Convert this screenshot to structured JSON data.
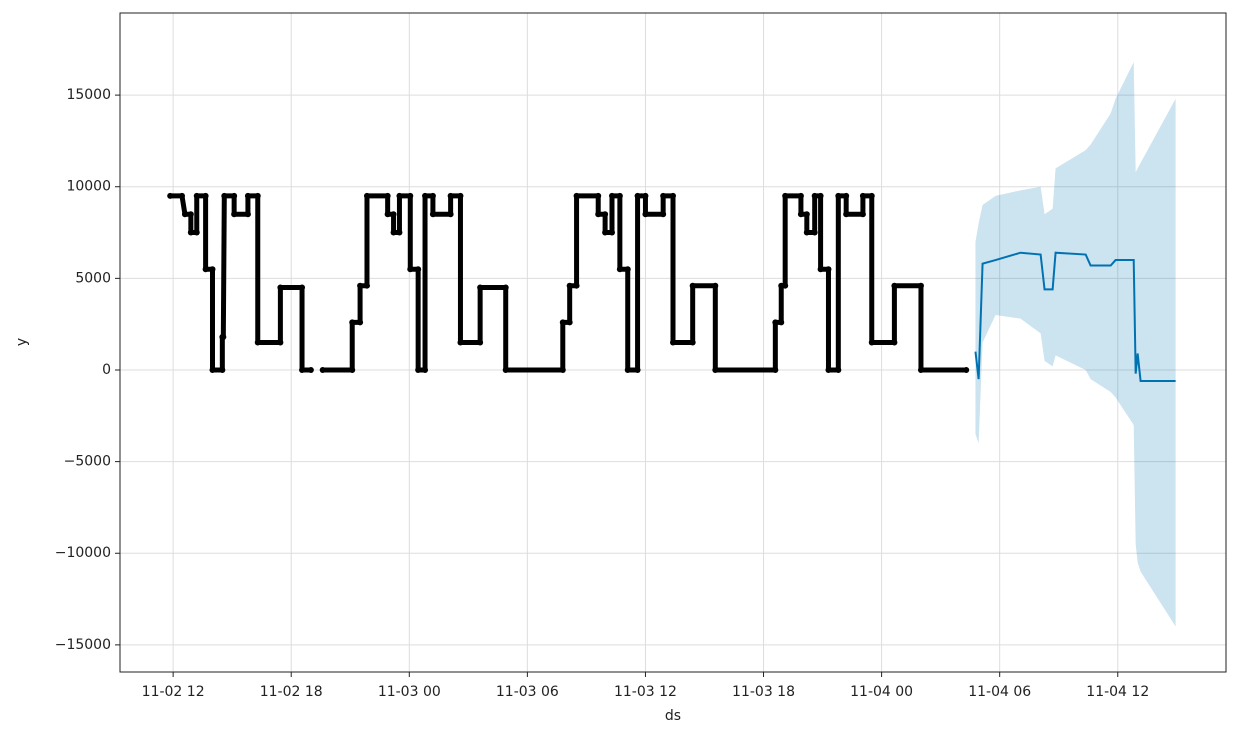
{
  "chart_data": {
    "type": "forecast",
    "xlabel": "ds",
    "ylabel": "y",
    "xlim": [
      9.3,
      65.5
    ],
    "xticks": [
      {
        "value": 12,
        "label": "11-02 12"
      },
      {
        "value": 18,
        "label": "11-02 18"
      },
      {
        "value": 24,
        "label": "11-03 00"
      },
      {
        "value": 30,
        "label": "11-03 06"
      },
      {
        "value": 36,
        "label": "11-03 12"
      },
      {
        "value": 42,
        "label": "11-03 18"
      },
      {
        "value": 48,
        "label": "11-04 00"
      },
      {
        "value": 54,
        "label": "11-04 06"
      },
      {
        "value": 60,
        "label": "11-04 12"
      }
    ],
    "ylim": [
      -16480,
      19480
    ],
    "yticks": [
      {
        "value": -15000,
        "label": "−15000"
      },
      {
        "value": -10000,
        "label": "−10000"
      },
      {
        "value": -5000,
        "label": "−5000"
      },
      0,
      5000,
      10000,
      15000
    ],
    "grid": true,
    "observed": {
      "color": "#000000",
      "x": [
        11.85,
        12.45,
        12.6,
        12.9,
        12.9,
        13.2,
        13.2,
        13.65,
        13.65,
        14.0,
        14.0,
        14.5,
        14.5,
        14.55,
        14.6,
        15.1,
        15.1,
        15.8,
        15.8,
        16.3,
        16.3,
        17.45,
        17.45,
        18.55,
        18.55,
        19.0,
        19.3,
        19.6,
        21.1,
        21.1,
        21.5,
        21.5,
        21.85,
        21.85,
        22.9,
        22.9,
        23.2,
        23.2,
        23.5,
        23.5,
        24.05,
        24.05,
        24.45,
        24.45,
        24.8,
        24.8,
        25.2,
        25.2,
        26.1,
        26.1,
        26.6,
        26.6,
        27.6,
        27.6,
        28.9,
        28.9,
        31.8,
        31.8,
        32.15,
        32.15,
        32.5,
        32.5,
        33.6,
        33.6,
        33.95,
        33.95,
        34.3,
        34.3,
        34.7,
        34.7,
        35.1,
        35.1,
        35.6,
        35.6,
        36.0,
        36.0,
        36.9,
        36.9,
        37.4,
        37.4,
        38.4,
        38.4,
        39.55,
        39.55,
        42.6,
        42.6,
        42.9,
        42.9,
        43.1,
        43.1,
        43.9,
        43.9,
        44.2,
        44.2,
        44.6,
        44.6,
        44.9,
        44.9,
        45.3,
        45.3,
        45.8,
        45.8,
        46.2,
        46.2,
        47.05,
        47.05,
        47.5,
        47.5,
        48.65,
        48.65,
        50.0,
        50.0,
        52.3
      ],
      "y": [
        9500,
        9500,
        8500,
        8500,
        7500,
        7500,
        9500,
        9500,
        5500,
        5500,
        0,
        0,
        1800,
        1800,
        9500,
        9500,
        8500,
        8500,
        9500,
        9500,
        1500,
        1500,
        4500,
        4500,
        0,
        0,
        null,
        0,
        0,
        2600,
        2600,
        4600,
        4600,
        9500,
        9500,
        8500,
        8500,
        7500,
        7500,
        9500,
        9500,
        5500,
        5500,
        0,
        0,
        9500,
        9500,
        8500,
        8500,
        9500,
        9500,
        1500,
        1500,
        4500,
        4500,
        0,
        0,
        2600,
        2600,
        4600,
        4600,
        9500,
        9500,
        8500,
        8500,
        7500,
        7500,
        9500,
        9500,
        5500,
        5500,
        0,
        0,
        9500,
        9500,
        8500,
        8500,
        9500,
        9500,
        1500,
        1500,
        4600,
        4600,
        0,
        0,
        2600,
        2600,
        4600,
        4600,
        9500,
        9500,
        8500,
        8500,
        7500,
        7500,
        9500,
        9500,
        5500,
        5500,
        0,
        0,
        9500,
        9500,
        8500,
        8500,
        9500,
        9500,
        1500,
        1500,
        4600,
        4600,
        0,
        0
      ]
    },
    "forecast": {
      "color": "#0072b2",
      "x": [
        52.77,
        52.93,
        53.13,
        53.79,
        55.06,
        56.08,
        56.28,
        56.69,
        56.84,
        58.37,
        58.62,
        59.64,
        59.89,
        60.81,
        60.91,
        61.01,
        61.16,
        62.94
      ],
      "yhat": [
        1000,
        -500,
        5800,
        6000,
        6400,
        6300,
        4400,
        4400,
        6400,
        6300,
        5700,
        5700,
        6000,
        6000,
        -200,
        900,
        -600,
        -600
      ],
      "lower": [
        -3500,
        -4000,
        1500,
        3000,
        2800,
        2000,
        500,
        200,
        800,
        0,
        -500,
        -1200,
        -1500,
        -3000,
        -9500,
        -10500,
        -11000,
        -14000
      ],
      "upper": [
        7000,
        8000,
        9000,
        9500,
        9800,
        10000,
        8500,
        8800,
        11000,
        12000,
        12300,
        14000,
        14800,
        16800,
        10800,
        11000,
        11300,
        14800
      ]
    }
  }
}
